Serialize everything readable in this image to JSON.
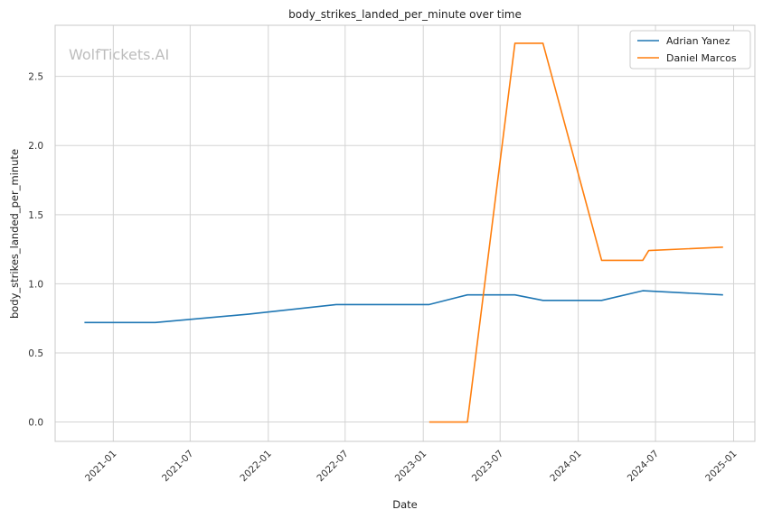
{
  "watermark": "WolfTickets.AI",
  "colors": {
    "series1": "#1f77b4",
    "series2": "#ff7f0e",
    "grid": "#d3d3d3",
    "frame": "#c8c8c8"
  },
  "chart_data": {
    "type": "line",
    "title": "body_strikes_landed_per_minute over time",
    "xlabel": "Date",
    "ylabel": "body_strikes_landed_per_minute",
    "xlim": [
      "2020-08-17",
      "2025-02-20"
    ],
    "ylim": [
      -0.14,
      2.87
    ],
    "x_ticks": [
      "2021-01",
      "2021-07",
      "2022-01",
      "2022-07",
      "2023-01",
      "2023-07",
      "2024-01",
      "2024-07",
      "2025-01"
    ],
    "x_tick_dates": [
      "2021-01-01",
      "2021-07-01",
      "2022-01-01",
      "2022-07-01",
      "2023-01-01",
      "2023-07-01",
      "2024-01-01",
      "2024-07-01",
      "2025-01-01"
    ],
    "y_ticks": [
      "0.0",
      "0.5",
      "1.0",
      "1.5",
      "2.0",
      "2.5"
    ],
    "y_tick_values": [
      0.0,
      0.5,
      1.0,
      1.5,
      2.0,
      2.5
    ],
    "grid": true,
    "legend_position": "top-right",
    "series": [
      {
        "name": "Adrian Yanez",
        "color": "#1f77b4",
        "points": [
          {
            "x": "2020-10-25",
            "y": 0.72
          },
          {
            "x": "2021-04-10",
            "y": 0.72
          },
          {
            "x": "2021-11-15",
            "y": 0.78
          },
          {
            "x": "2022-06-10",
            "y": 0.85
          },
          {
            "x": "2023-01-15",
            "y": 0.85
          },
          {
            "x": "2023-04-15",
            "y": 0.92
          },
          {
            "x": "2023-08-05",
            "y": 0.92
          },
          {
            "x": "2023-10-10",
            "y": 0.88
          },
          {
            "x": "2024-02-25",
            "y": 0.88
          },
          {
            "x": "2024-06-01",
            "y": 0.95
          },
          {
            "x": "2024-12-07",
            "y": 0.92
          }
        ]
      },
      {
        "name": "Daniel Marcos",
        "color": "#ff7f0e",
        "points": [
          {
            "x": "2023-01-15",
            "y": 0.0
          },
          {
            "x": "2023-04-15",
            "y": 0.0
          },
          {
            "x": "2023-08-05",
            "y": 2.74
          },
          {
            "x": "2023-10-10",
            "y": 2.74
          },
          {
            "x": "2024-02-25",
            "y": 1.17
          },
          {
            "x": "2024-06-01",
            "y": 1.17
          },
          {
            "x": "2024-06-15",
            "y": 1.24
          },
          {
            "x": "2024-12-07",
            "y": 1.265
          }
        ]
      }
    ]
  }
}
